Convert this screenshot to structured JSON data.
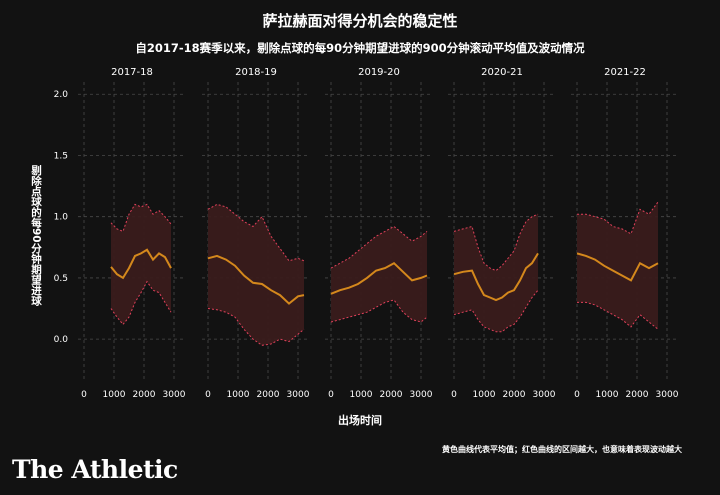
{
  "title": "萨拉赫面对得分机会的稳定性",
  "subtitle": "自2017-18赛季以来，剔除点球的每90分钟期望进球的900分钟滚动平均值及波动情况",
  "footnote": "黄色曲线代表平均值；红色曲线的区间越大，也意味着表现波动越大",
  "brand": "The Athletic",
  "colors": {
    "background": "#121212",
    "mean_line": "#d4881c",
    "band_fill": "#3a1c1c",
    "band_edge": "#e0405a",
    "grid": "#4a4a4a",
    "text": "#ffffff"
  },
  "chart_data": {
    "type": "line",
    "xlabel": "出场时间",
    "ylabel": "剔除点球的每90分钟期望进球",
    "ylim": [
      -0.35,
      2.1
    ],
    "xlim": [
      -200,
      3400
    ],
    "y_ticks": [
      0.0,
      0.5,
      1.0,
      1.5,
      2.0
    ],
    "y_tick_labels": [
      "0.0",
      "0.5",
      "1.0",
      "1.5",
      "2.0"
    ],
    "x_ticks": [
      0,
      1000,
      2000,
      3000
    ],
    "x_tick_labels": [
      "0",
      "1000",
      "2000",
      "3000"
    ],
    "grid": true,
    "panels": [
      {
        "season": "2017-18",
        "x": [
          900,
          1100,
          1300,
          1500,
          1700,
          1900,
          2100,
          2300,
          2500,
          2700,
          2900
        ],
        "mean": [
          0.59,
          0.53,
          0.5,
          0.58,
          0.68,
          0.7,
          0.73,
          0.65,
          0.7,
          0.67,
          0.58
        ],
        "upper": [
          0.95,
          0.9,
          0.88,
          1.02,
          1.1,
          1.08,
          1.1,
          1.02,
          1.05,
          1.0,
          0.94
        ],
        "lower": [
          0.25,
          0.18,
          0.12,
          0.18,
          0.3,
          0.38,
          0.47,
          0.4,
          0.38,
          0.3,
          0.22
        ]
      },
      {
        "season": "2018-19",
        "x": [
          0,
          300,
          600,
          900,
          1200,
          1500,
          1800,
          2100,
          2400,
          2700,
          3000,
          3200
        ],
        "mean": [
          0.66,
          0.68,
          0.65,
          0.6,
          0.52,
          0.46,
          0.45,
          0.4,
          0.36,
          0.29,
          0.35,
          0.36
        ],
        "upper": [
          1.06,
          1.1,
          1.08,
          1.02,
          0.96,
          0.92,
          1.0,
          0.84,
          0.74,
          0.64,
          0.66,
          0.64
        ],
        "lower": [
          0.25,
          0.24,
          0.22,
          0.18,
          0.08,
          0.0,
          -0.05,
          -0.04,
          0.0,
          -0.02,
          0.04,
          0.08
        ]
      },
      {
        "season": "2019-20",
        "x": [
          0,
          300,
          600,
          900,
          1200,
          1500,
          1800,
          2100,
          2400,
          2700,
          3000,
          3200
        ],
        "mean": [
          0.37,
          0.4,
          0.42,
          0.45,
          0.5,
          0.56,
          0.58,
          0.62,
          0.55,
          0.48,
          0.5,
          0.52
        ],
        "upper": [
          0.58,
          0.62,
          0.66,
          0.72,
          0.78,
          0.84,
          0.88,
          0.92,
          0.86,
          0.8,
          0.84,
          0.88
        ],
        "lower": [
          0.14,
          0.16,
          0.18,
          0.2,
          0.22,
          0.26,
          0.3,
          0.32,
          0.22,
          0.16,
          0.14,
          0.18
        ]
      },
      {
        "season": "2020-21",
        "x": [
          0,
          300,
          600,
          800,
          1000,
          1200,
          1400,
          1600,
          1800,
          2000,
          2200,
          2400,
          2600,
          2800
        ],
        "mean": [
          0.53,
          0.55,
          0.56,
          0.45,
          0.36,
          0.34,
          0.32,
          0.34,
          0.38,
          0.4,
          0.48,
          0.58,
          0.62,
          0.7
        ],
        "upper": [
          0.88,
          0.9,
          0.92,
          0.75,
          0.62,
          0.58,
          0.56,
          0.6,
          0.66,
          0.72,
          0.86,
          0.96,
          1.0,
          1.02
        ],
        "lower": [
          0.2,
          0.22,
          0.24,
          0.16,
          0.1,
          0.08,
          0.06,
          0.06,
          0.1,
          0.12,
          0.18,
          0.26,
          0.34,
          0.4
        ]
      },
      {
        "season": "2021-22",
        "x": [
          0,
          300,
          600,
          900,
          1200,
          1500,
          1800,
          2100,
          2400,
          2700
        ],
        "mean": [
          0.7,
          0.68,
          0.65,
          0.6,
          0.56,
          0.52,
          0.48,
          0.62,
          0.58,
          0.62
        ],
        "upper": [
          1.02,
          1.02,
          1.0,
          0.98,
          0.92,
          0.9,
          0.86,
          1.06,
          1.02,
          1.12
        ],
        "lower": [
          0.3,
          0.3,
          0.28,
          0.24,
          0.2,
          0.16,
          0.1,
          0.2,
          0.14,
          0.08
        ]
      }
    ]
  }
}
